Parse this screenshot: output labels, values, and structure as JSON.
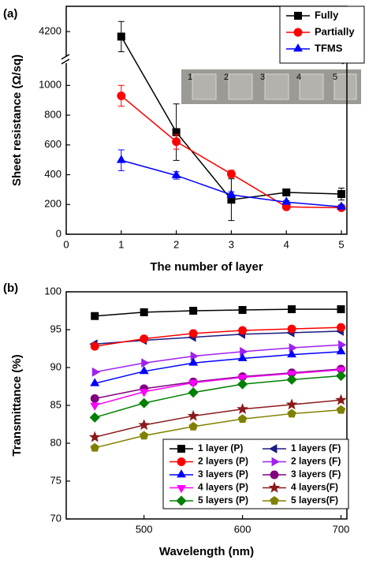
{
  "chart_data": [
    {
      "type": "line",
      "panel_label": "(a)",
      "xlabel": "The number of layer",
      "ylabel": "Sheet resistance (Ω/sq)",
      "x": [
        1,
        2,
        3,
        4,
        5
      ],
      "xlim": [
        0,
        5.1
      ],
      "xticks": [
        0,
        1,
        2,
        3,
        4,
        5
      ],
      "ylim": [
        0,
        1150
      ],
      "yticks": [
        0,
        200,
        400,
        600,
        800,
        1000
      ],
      "y_break": {
        "ylim": [
          4100,
          4300
        ],
        "yticks": [
          4200
        ]
      },
      "legend": "upper right",
      "inset_labels": [
        "1",
        "2",
        "3",
        "4",
        "5"
      ],
      "series": [
        {
          "name": "Fully",
          "color": "#000000",
          "marker": "square",
          "values": [
            4180,
            686,
            232,
            281,
            270
          ],
          "errors": [
            60,
            190,
            140,
            20,
            40
          ]
        },
        {
          "name": "Partially",
          "color": "#ff0000",
          "marker": "circle",
          "values": [
            930,
            622,
            405,
            184,
            178
          ],
          "errors": [
            70,
            50,
            25,
            10,
            15
          ]
        },
        {
          "name": "TFMS",
          "color": "#0000ff",
          "marker": "triangle-up",
          "values": [
            497,
            395,
            265,
            216,
            184
          ],
          "errors": [
            70,
            25,
            20,
            10,
            10
          ]
        }
      ]
    },
    {
      "type": "line",
      "panel_label": "(b)",
      "xlabel": "Wavelength (nm)",
      "ylabel": "Transmittance (%)",
      "x": [
        450,
        500,
        550,
        600,
        650,
        700
      ],
      "xlim": [
        421,
        706
      ],
      "xticks": [
        500,
        600,
        700
      ],
      "ylim": [
        70,
        100
      ],
      "yticks": [
        70,
        75,
        80,
        85,
        90,
        95,
        100
      ],
      "legend": "lower right",
      "series": [
        {
          "name": "1 layer (P)",
          "color": "#000000",
          "marker": "square",
          "values": [
            96.8,
            97.3,
            97.5,
            97.6,
            97.7,
            97.7
          ]
        },
        {
          "name": "1  layers (F)",
          "color": "#1a1a80",
          "marker": "triangle-left",
          "values": [
            93.1,
            93.6,
            94.0,
            94.4,
            94.6,
            94.8
          ]
        },
        {
          "name": "2 layers (P)",
          "color": "#ff0000",
          "marker": "circle",
          "values": [
            92.8,
            93.8,
            94.5,
            94.9,
            95.1,
            95.3
          ]
        },
        {
          "name": "2  layers (F)",
          "color": "#a020f0",
          "marker": "triangle-right",
          "values": [
            89.4,
            90.6,
            91.5,
            92.1,
            92.6,
            93.0
          ]
        },
        {
          "name": "3 layers (P)",
          "color": "#0000ff",
          "marker": "triangle-up",
          "values": [
            87.9,
            89.5,
            90.6,
            91.2,
            91.7,
            92.1
          ]
        },
        {
          "name": "3  layers (F)",
          "color": "#800080",
          "marker": "circle",
          "values": [
            85.9,
            87.2,
            88.1,
            88.8,
            89.3,
            89.8
          ]
        },
        {
          "name": "4 layers (P)",
          "color": "#ff00ff",
          "marker": "triangle-down",
          "values": [
            85.0,
            86.8,
            88.0,
            88.7,
            89.2,
            89.7
          ]
        },
        {
          "name": "4  layers(F)",
          "color": "#8b1a1a",
          "marker": "star",
          "values": [
            80.8,
            82.4,
            83.6,
            84.5,
            85.1,
            85.7
          ]
        },
        {
          "name": "5  layers (P)",
          "color": "#008000",
          "marker": "diamond",
          "values": [
            83.4,
            85.3,
            86.7,
            87.8,
            88.4,
            88.9
          ]
        },
        {
          "name": "5  layers(F)",
          "color": "#808000",
          "marker": "pentagon",
          "values": [
            79.4,
            81.0,
            82.2,
            83.2,
            83.9,
            84.4
          ]
        }
      ]
    }
  ]
}
